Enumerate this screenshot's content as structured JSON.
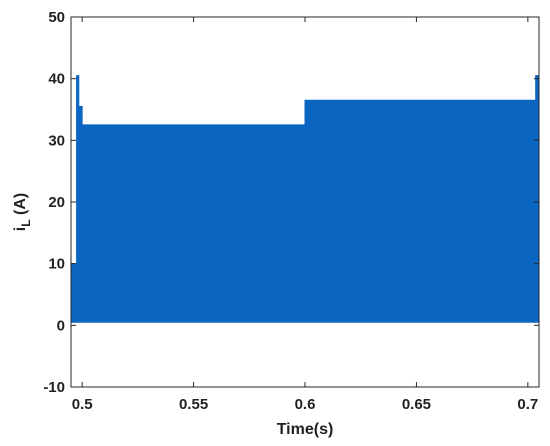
{
  "chart_data": {
    "type": "line",
    "title": "",
    "xlabel": "Time(s)",
    "ylabel_main": "i",
    "ylabel_sub": "L",
    "ylabel_unit": " (A)",
    "xlim": [
      0.495,
      0.705
    ],
    "ylim": [
      -10,
      50
    ],
    "xticks": [
      0.5,
      0.55,
      0.6,
      0.65,
      0.7
    ],
    "xtick_labels": [
      "0.5",
      "0.55",
      "0.6",
      "0.65",
      "0.7"
    ],
    "yticks": [
      -10,
      0,
      10,
      20,
      30,
      40,
      50
    ],
    "ytick_labels": [
      "-10",
      "0",
      "10",
      "20",
      "30",
      "40",
      "50"
    ],
    "grid": false,
    "series": [
      {
        "color": "#0b66c2",
        "x": [
          0.495,
          0.4975,
          0.4975,
          0.4985,
          0.4985,
          0.5,
          0.5,
          0.5005,
          0.5005,
          0.5995,
          0.6,
          0.6,
          0.7035,
          0.7035,
          0.705
        ],
        "y_upper": [
          10,
          10,
          40.5,
          40.5,
          35.5,
          35.5,
          32.5,
          32.5,
          32.5,
          32.5,
          32.5,
          36.5,
          36.5,
          40.5,
          40.5
        ],
        "y_lower": [
          0.5,
          0.5,
          0.5,
          0.5,
          0.5,
          0.5,
          0.5,
          0.5,
          0.5,
          0.5,
          0.5,
          0.5,
          0.5,
          0.5,
          0.5
        ]
      }
    ]
  }
}
